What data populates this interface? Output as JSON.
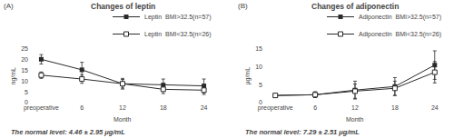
{
  "chart_data": [
    {
      "type": "line",
      "title": "Changes of leptin",
      "xlabel": "Month",
      "ylabel": "ng/mL",
      "categories": [
        "preoperative",
        "6",
        "12",
        "18",
        "24"
      ],
      "series": [
        {
          "name": "Leptin  BMI>32.5(n=57)",
          "color": "#2b2b2b",
          "marker": "square",
          "line_style": "solid",
          "values": [
            20.2,
            15.3,
            8.8,
            8.2,
            7.8
          ],
          "errors": [
            2.2,
            3.5,
            2.5,
            2.8,
            3.2
          ]
        },
        {
          "name": "Leptin  BMI<32.5(n=26)",
          "color": "#2b2b2b",
          "marker": "square-open",
          "line_style": "solid",
          "values": [
            12.8,
            11.0,
            8.8,
            6.2,
            5.8
          ],
          "errors": [
            1.5,
            2.0,
            2.0,
            2.0,
            2.0
          ]
        }
      ],
      "ylim": [
        0,
        25
      ],
      "yticks": [
        0,
        5,
        10,
        15,
        20,
        25
      ],
      "grid": false,
      "legend": "upper right",
      "annotations": [
        "(A)",
        "The normal level: 4.46 ± 2.95 μg/mL"
      ]
    },
    {
      "type": "line",
      "title": "Changes of adiponectin",
      "xlabel": "Month",
      "ylabel": "μg/mL",
      "categories": [
        "preoperative",
        "6",
        "12",
        "18",
        "24"
      ],
      "series": [
        {
          "name": "Adiponectin  BMI>32.5(n=57)",
          "color": "#2b2b2b",
          "marker": "square",
          "line_style": "solid",
          "values": [
            2.0,
            2.2,
            3.5,
            4.5,
            10.5
          ],
          "errors": [
            0.5,
            0.8,
            2.5,
            2.5,
            4.0
          ]
        },
        {
          "name": "Adiponectin  BMI<32.5(n=26)",
          "color": "#2b2b2b",
          "marker": "square-open",
          "line_style": "solid",
          "values": [
            2.0,
            2.2,
            3.2,
            4.0,
            8.5
          ],
          "errors": [
            0.5,
            0.8,
            2.0,
            2.0,
            3.0
          ]
        }
      ],
      "ylim": [
        0,
        15
      ],
      "yticks": [
        0,
        5,
        10,
        15
      ],
      "grid": false,
      "legend": "upper right",
      "annotations": [
        "(B)",
        "The normal level: 7.29 ± 2.51 μg/mL"
      ]
    }
  ]
}
